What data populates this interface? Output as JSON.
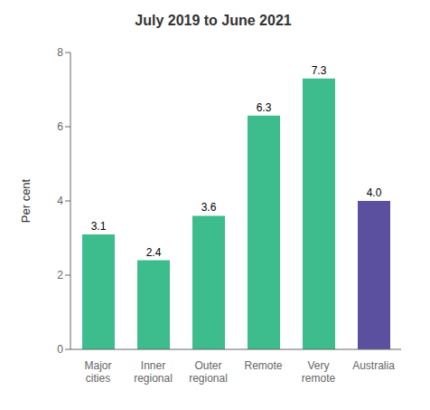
{
  "chart_data": {
    "type": "bar",
    "title": "July 2019 to June 2021",
    "categories": [
      "Major\ncities",
      "Inner\nregional",
      "Outer\nregional",
      "Remote",
      "Very\nremote",
      "Australia"
    ],
    "values": [
      3.1,
      2.4,
      3.6,
      6.3,
      7.3,
      4.0
    ],
    "value_labels": [
      "3.1",
      "2.4",
      "3.6",
      "6.3",
      "7.3",
      "4.0"
    ],
    "data_labels": true,
    "colors": [
      "#3dbc8e",
      "#3dbc8e",
      "#3dbc8e",
      "#3dbc8e",
      "#3dbc8e",
      "#5b50a0"
    ],
    "ylabel": "Per cent",
    "ylim": [
      0,
      8
    ],
    "yticks": [
      0,
      2,
      4,
      6,
      8
    ],
    "grid": false
  }
}
